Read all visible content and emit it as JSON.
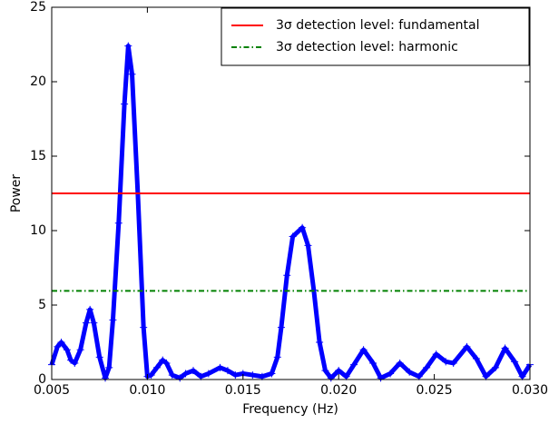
{
  "chart_data": {
    "type": "line",
    "x_label": "Frequency (Hz)",
    "y_label": "Power",
    "x": [
      0.005,
      0.0053,
      0.0055,
      0.0058,
      0.006,
      0.0062,
      0.0065,
      0.0068,
      0.007,
      0.0072,
      0.0075,
      0.0078,
      0.008,
      0.0082,
      0.0085,
      0.0088,
      0.009,
      0.0092,
      0.0095,
      0.0098,
      0.01,
      0.0102,
      0.0105,
      0.0108,
      0.011,
      0.0113,
      0.0117,
      0.012,
      0.0124,
      0.0128,
      0.0132,
      0.0138,
      0.0142,
      0.0146,
      0.015,
      0.0155,
      0.016,
      0.0165,
      0.0168,
      0.017,
      0.0173,
      0.0176,
      0.0181,
      0.0184,
      0.0187,
      0.019,
      0.0193,
      0.0196,
      0.02,
      0.0204,
      0.0208,
      0.0213,
      0.0218,
      0.0222,
      0.0227,
      0.0232,
      0.0237,
      0.0242,
      0.0246,
      0.0251,
      0.0256,
      0.026,
      0.0267,
      0.0272,
      0.0277,
      0.0282,
      0.0287,
      0.0292,
      0.0296,
      0.03
    ],
    "series": [
      {
        "color": "#0000ff",
        "values": [
          1.0,
          2.2,
          2.5,
          2.0,
          1.3,
          1.1,
          2.0,
          3.8,
          4.7,
          3.8,
          1.5,
          0.1,
          0.8,
          4.0,
          10.5,
          18.5,
          22.4,
          20.5,
          12.5,
          3.5,
          0.2,
          0.3,
          0.8,
          1.3,
          1.1,
          0.3,
          0.1,
          0.4,
          0.6,
          0.2,
          0.4,
          0.8,
          0.6,
          0.3,
          0.4,
          0.3,
          0.2,
          0.4,
          1.5,
          3.5,
          7.0,
          9.6,
          10.2,
          9.0,
          6.0,
          2.5,
          0.6,
          0.1,
          0.6,
          0.2,
          1.0,
          2.0,
          1.1,
          0.1,
          0.4,
          1.1,
          0.5,
          0.2,
          0.8,
          1.7,
          1.2,
          1.1,
          2.2,
          1.4,
          0.2,
          0.8,
          2.1,
          1.2,
          0.2,
          1.0
        ]
      }
    ],
    "reference_lines": [
      {
        "name": "3σ detection level: fundamental",
        "color": "#ff0000",
        "value": 12.5,
        "style": "solid"
      },
      {
        "name": "3σ detection level: harmonic",
        "color": "#008000",
        "value": 5.95,
        "style": "dashdot"
      }
    ],
    "legend": "upper right",
    "xlim": [
      0.005,
      0.03
    ],
    "xticks": [
      0.005,
      {
        "value": 0.01,
        "label": "0.010"
      },
      0.015,
      {
        "value": 0.02,
        "label": "0.020"
      },
      0.025,
      {
        "value": 0.03,
        "label": "0.030"
      }
    ],
    "ylim": [
      0,
      25
    ],
    "yticks": [
      0,
      5,
      10,
      15,
      20,
      25
    ]
  }
}
